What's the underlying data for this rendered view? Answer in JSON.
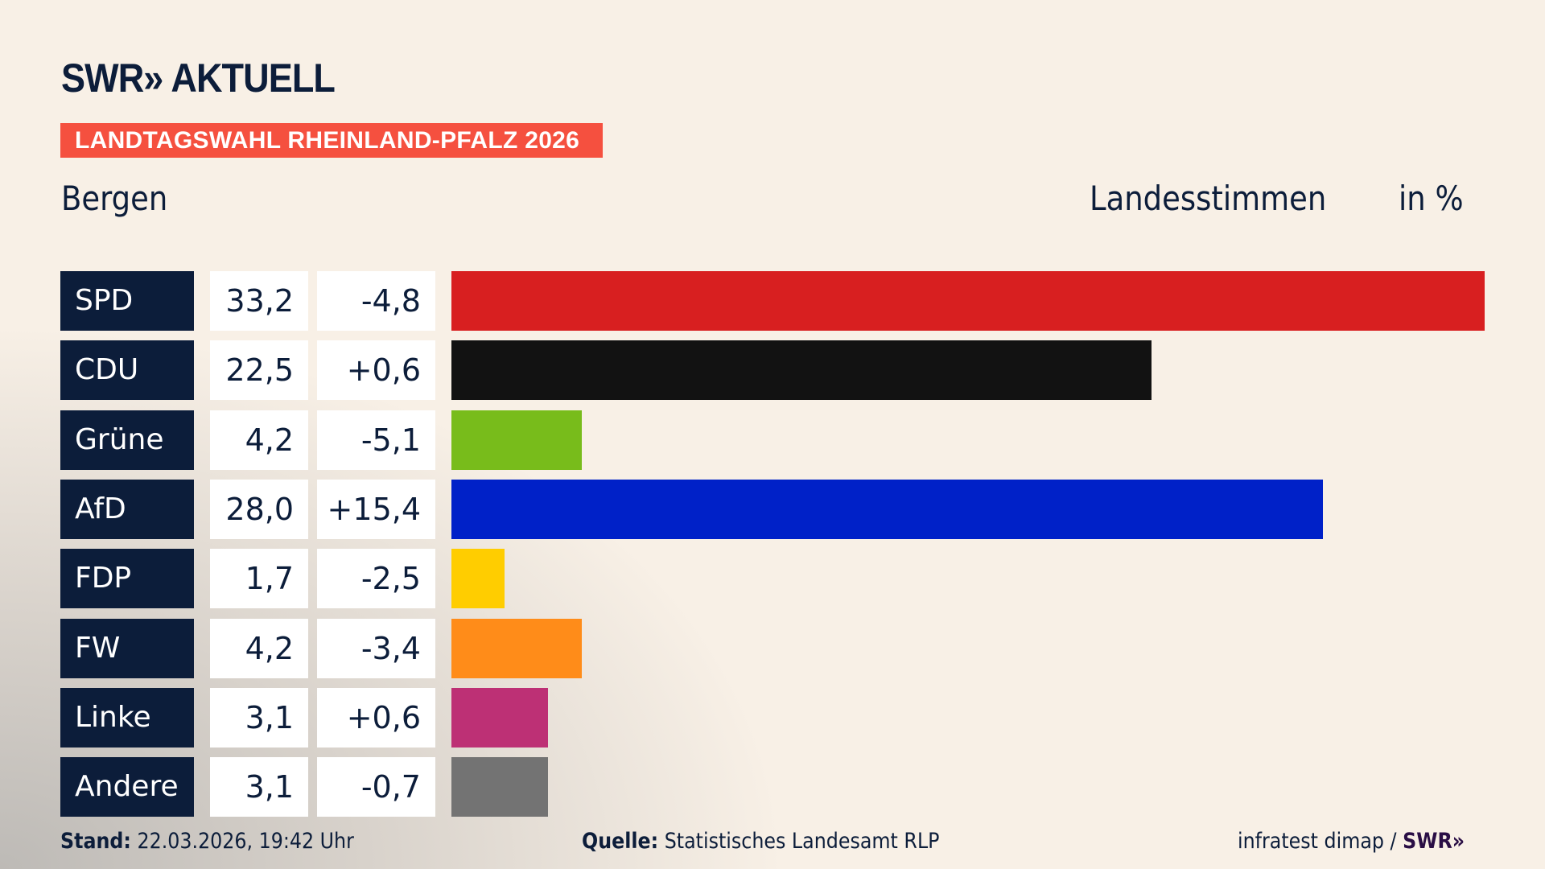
{
  "header": {
    "logo": "SWR» AKTUELL",
    "banner": "LANDTAGSWAHL RHEINLAND-PFALZ 2026",
    "region": "Bergen",
    "vote_type": "Landesstimmen",
    "unit": "in %"
  },
  "chart_data": {
    "type": "bar",
    "orientation": "horizontal",
    "categories": [
      "SPD",
      "CDU",
      "Grüne",
      "AfD",
      "FDP",
      "FW",
      "Linke",
      "Andere"
    ],
    "values": [
      33.2,
      22.5,
      4.2,
      28.0,
      1.7,
      4.2,
      3.1,
      3.1
    ],
    "value_labels": [
      "33,2",
      "22,5",
      "4,2",
      "28,0",
      "1,7",
      "4,2",
      "3,1",
      "3,1"
    ],
    "diff_labels": [
      "-4,8",
      "+0,6",
      "-5,1",
      "+15,4",
      "-2,5",
      "-3,4",
      "+0,6",
      "-0,7"
    ],
    "diffs": [
      -4.8,
      0.6,
      -5.1,
      15.4,
      -2.5,
      -3.4,
      0.6,
      -0.7
    ],
    "colors": [
      "#d81f20",
      "#121212",
      "#78bc1b",
      "#0021c8",
      "#ffcd00",
      "#ff8c19",
      "#bd3075",
      "#737373"
    ],
    "unit": "in %"
  },
  "footer": {
    "stand_label": "Stand:",
    "stand_value": "22.03.2026, 19:42 Uhr",
    "source_label": "Quelle:",
    "source_value": "Statistisches Landesamt RLP",
    "credit": "infratest dimap /",
    "credit_logo": "SWR»"
  }
}
